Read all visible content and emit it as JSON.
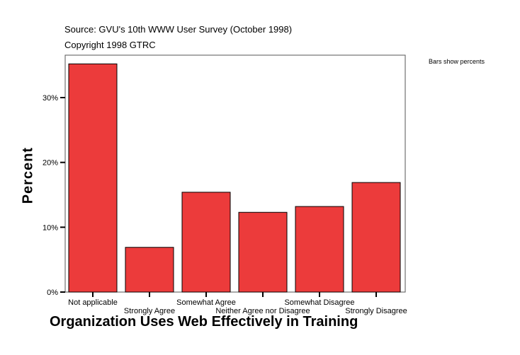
{
  "chart_data": {
    "type": "bar",
    "subtitle_lines": [
      "Source: GVU's 10th WWW User Survey (October 1998)",
      "Copyright 1998 GTRC"
    ],
    "note": "Bars show percents",
    "xlabel": "Organization Uses Web Effectively in Training",
    "ylabel": "Percent",
    "categories": [
      "Not applicable",
      "Strongly Agree",
      "Somewhat Agree",
      "Neither Agree nor Disagree",
      "Somewhat Disagree",
      "Strongly Disagree"
    ],
    "values": [
      35.2,
      6.9,
      15.4,
      12.3,
      13.2,
      16.9
    ],
    "yticks": [
      0,
      10,
      20,
      30
    ],
    "ytick_labels": [
      "0%",
      "10%",
      "20%",
      "30%"
    ],
    "ylim": [
      0,
      36.5
    ],
    "grid": false,
    "bar_color": "#ec3b3b"
  }
}
